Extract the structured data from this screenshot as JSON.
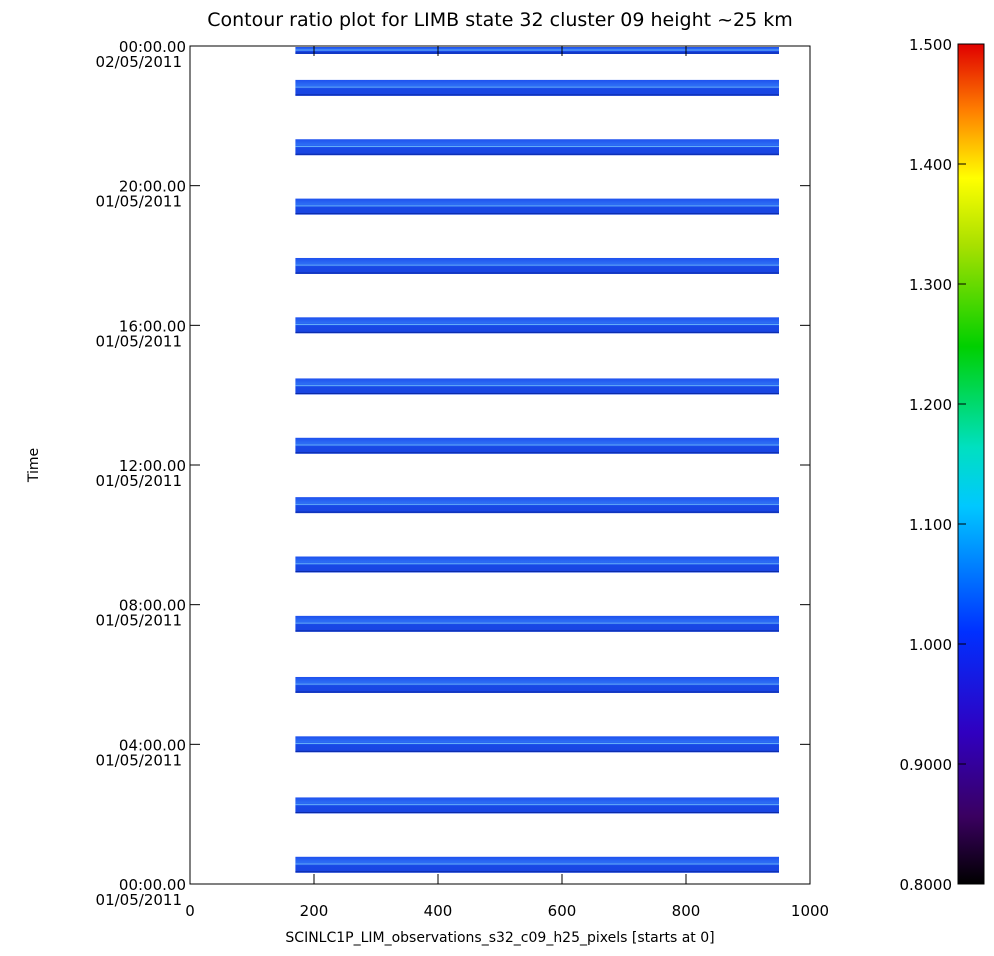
{
  "chart_data": {
    "type": "heatmap",
    "title": "Contour ratio plot for LIMB state 32 cluster 09 height ~25 km",
    "xlabel": "SCINLC1P_LIM_observations_s32_c09_h25_pixels [starts at 0]",
    "ylabel": "Time",
    "xlim": [
      0,
      1000
    ],
    "x_ticks": [
      "0",
      "200",
      "400",
      "600",
      "800",
      "1000"
    ],
    "x_tick_values": [
      0,
      200,
      400,
      600,
      800,
      1000
    ],
    "ylim_hours": [
      0,
      24
    ],
    "y_ticks": [
      {
        "time": "00:00.00",
        "date": "01/05/2011",
        "hours": 0
      },
      {
        "time": "04:00.00",
        "date": "01/05/2011",
        "hours": 4
      },
      {
        "time": "08:00.00",
        "date": "01/05/2011",
        "hours": 8
      },
      {
        "time": "12:00.00",
        "date": "01/05/2011",
        "hours": 12
      },
      {
        "time": "16:00.00",
        "date": "01/05/2011",
        "hours": 16
      },
      {
        "time": "20:00.00",
        "date": "01/05/2011",
        "hours": 20
      },
      {
        "time": "00:00.00",
        "date": "02/05/2011",
        "hours": 24
      }
    ],
    "pixel_range": [
      170,
      950
    ],
    "observation_bands_hours": [
      0.55,
      2.25,
      4.0,
      5.7,
      7.45,
      9.15,
      10.85,
      12.55,
      14.25,
      16.0,
      17.7,
      19.4,
      21.1,
      22.8,
      24.0
    ],
    "band_ratio_value": 1.0,
    "colorbar": {
      "range": [
        0.8,
        1.5
      ],
      "ticks": [
        "0.8000",
        "0.9000",
        "1.000",
        "1.100",
        "1.200",
        "1.300",
        "1.400",
        "1.500"
      ],
      "tick_values": [
        0.8,
        0.9,
        1.0,
        1.1,
        1.2,
        1.3,
        1.4,
        1.5
      ],
      "colormap": "rainbow"
    },
    "grid": false
  }
}
